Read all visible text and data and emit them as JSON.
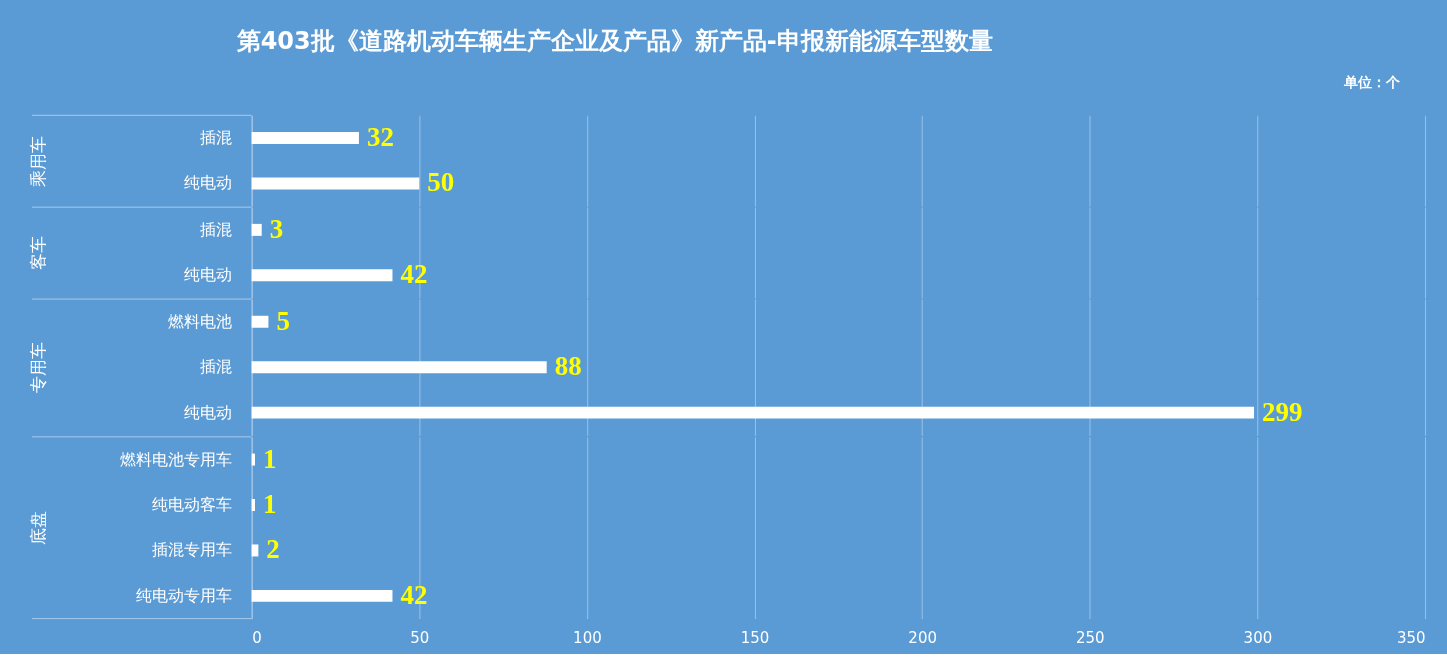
{
  "chart_data": [
    {
      "type": "bar",
      "orientation": "horizontal",
      "title": "第403批《道路机动车辆生产企业及产品》新产品-申报新能源车型数量",
      "annotations": [
        "单位：个"
      ],
      "ylabel": "乘用车",
      "categories": [
        "插混",
        "纯电动"
      ],
      "values": [
        32,
        50
      ],
      "color": "#ffffff",
      "xlim": [
        0,
        350
      ],
      "xticks": [
        0,
        50,
        100,
        150,
        200,
        250,
        300,
        350
      ],
      "grid": "x",
      "data_labels": true,
      "tick_labels": "y"
    },
    {
      "type": "bar",
      "orientation": "horizontal",
      "ylabel": "客车",
      "categories": [
        "插混",
        "纯电动"
      ],
      "values": [
        3,
        42
      ],
      "color": "#ffffff",
      "xlim": [
        0,
        350
      ],
      "xticks": [
        0,
        50,
        100,
        150,
        200,
        250,
        300,
        350
      ],
      "grid": "x",
      "data_labels": true,
      "tick_labels": "y"
    },
    {
      "type": "bar",
      "orientation": "horizontal",
      "ylabel": "专用车",
      "categories": [
        "燃料电池",
        "插混",
        "纯电动"
      ],
      "values": [
        5,
        88,
        299
      ],
      "color": "#ffffff",
      "xlim": [
        0,
        350
      ],
      "xticks": [
        0,
        50,
        100,
        150,
        200,
        250,
        300,
        350
      ],
      "grid": "x",
      "data_labels": true,
      "tick_labels": "y"
    },
    {
      "type": "bar",
      "orientation": "horizontal",
      "ylabel": "底盘",
      "categories": [
        "燃料电池专用车",
        "纯电动客车",
        "插混专用车",
        "纯电动专用车"
      ],
      "values": [
        1,
        1,
        2,
        42
      ],
      "color": "#ffffff",
      "xlim": [
        0,
        350
      ],
      "xticks": [
        0,
        50,
        100,
        150,
        200,
        250,
        300,
        350
      ],
      "grid": "x",
      "data_labels": true
    }
  ]
}
